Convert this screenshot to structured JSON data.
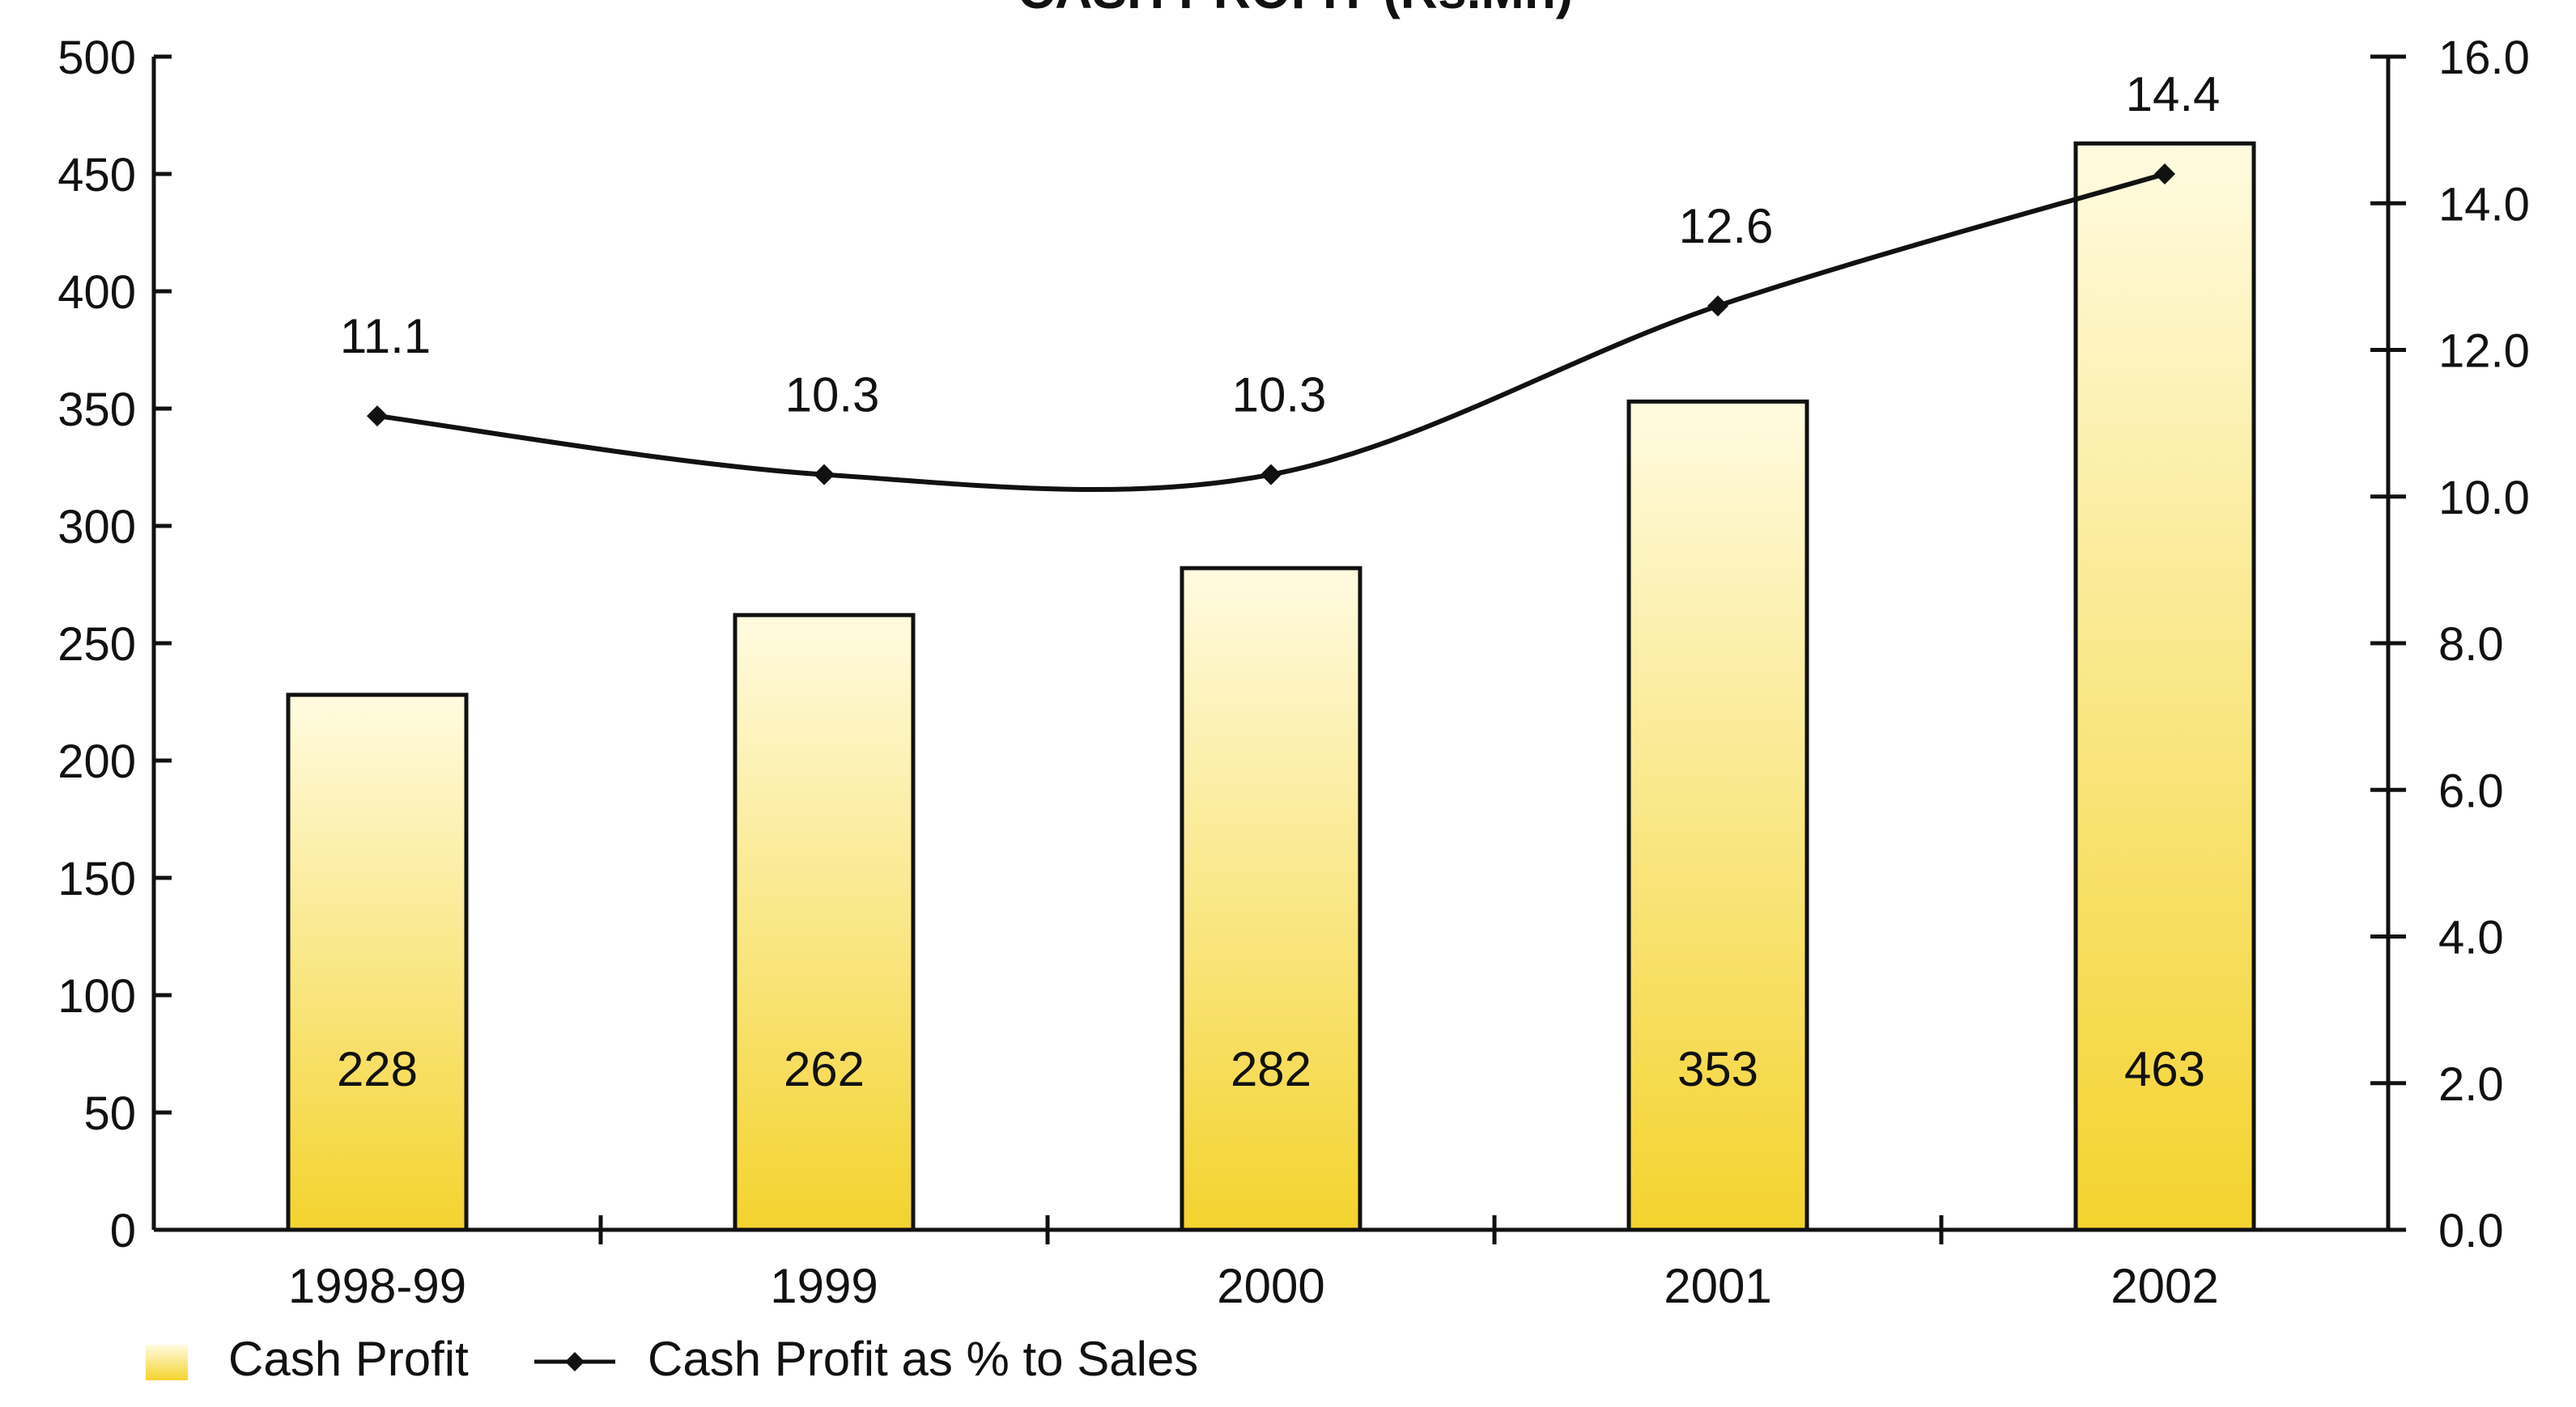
{
  "chart_data": {
    "type": "bar",
    "title": "CASH PROFIT (Rs.Mn)",
    "categories": [
      "1998-99",
      "1999",
      "2000",
      "2001",
      "2002"
    ],
    "series": [
      {
        "name": "Cash Profit",
        "type": "bar",
        "axis": "left",
        "values": [
          228,
          262,
          282,
          353,
          463
        ],
        "value_labels": [
          "228",
          "262",
          "282",
          "353",
          "463"
        ]
      },
      {
        "name": "Cash Profit as % to Sales",
        "type": "line",
        "axis": "right",
        "values": [
          11.1,
          10.3,
          10.3,
          12.6,
          14.4
        ],
        "value_labels": [
          "11.1",
          "10.3",
          "10.3",
          "12.6",
          "14.4"
        ]
      }
    ],
    "y_left": {
      "ylim": [
        0,
        500
      ],
      "ticks": [
        0,
        50,
        100,
        150,
        200,
        250,
        300,
        350,
        400,
        450,
        500
      ],
      "tick_labels": [
        "0",
        "50",
        "100",
        "150",
        "200",
        "250",
        "300",
        "350",
        "400",
        "450",
        "500"
      ]
    },
    "y_right": {
      "ylim": [
        0,
        16
      ],
      "ticks": [
        0,
        2,
        4,
        6,
        8,
        10,
        12,
        14,
        16
      ],
      "tick_labels": [
        "0.0",
        "2.0",
        "4.0",
        "6.0",
        "8.0",
        "10.0",
        "12.0",
        "14.0",
        "16.0"
      ]
    },
    "legend": {
      "position": "bottom-left",
      "items": [
        "Cash Profit",
        "Cash Profit as % to Sales"
      ]
    },
    "colors": {
      "bar_top": "#fffbe0",
      "bar_bottom": "#f4d32e",
      "bar_stroke": "#111111",
      "line": "#111111",
      "axis": "#111111"
    },
    "grid": false
  }
}
